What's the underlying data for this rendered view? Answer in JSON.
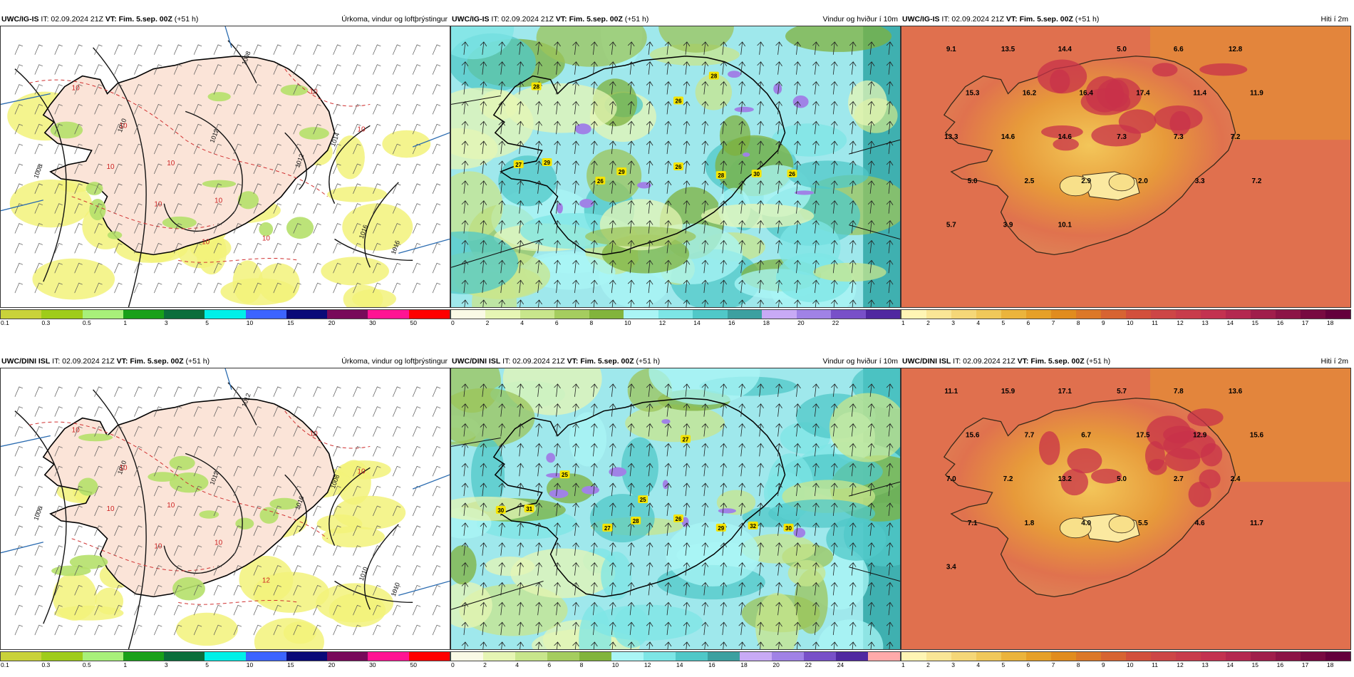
{
  "rows": [
    {
      "model": "UWC/IG-IS",
      "it": "IT: 02.09.2024 21Z",
      "vt": "VT: Fim. 5.sep. 00Z",
      "lead": "(+51 h)",
      "panels": [
        {
          "title": "Úrkoma, vindur og loftþrýstingur",
          "legend": [
            "0.1",
            "0.3",
            "0.5",
            "1",
            "3",
            "5",
            "10",
            "15",
            "20",
            "30",
            "50"
          ]
        },
        {
          "title": "Vindur og hviður í 10m",
          "legend": [
            "0",
            "2",
            "4",
            "6",
            "8",
            "10",
            "12",
            "14",
            "16",
            "18",
            "20",
            "22"
          ]
        },
        {
          "title": "Hiti í 2m",
          "legend": [
            "1",
            "2",
            "3",
            "4",
            "5",
            "6",
            "7",
            "8",
            "9",
            "10",
            "11",
            "12",
            "13",
            "14",
            "15",
            "16",
            "17",
            "18"
          ]
        }
      ],
      "temps": [
        "9.1",
        "13.5",
        "14.4",
        "5.0",
        "6.6",
        "12.8",
        "15.3",
        "16.2",
        "16.4",
        "17.4",
        "11.4",
        "11.9",
        "13.3",
        "14.6",
        "14.6",
        "7.3",
        "7.3",
        "7.2",
        "5.0",
        "2.5",
        "2.9",
        "2.0",
        "3.3",
        "7.2",
        "5.7",
        "3.9",
        "10.1"
      ],
      "gusts": [
        "28",
        "28",
        "26",
        "27",
        "29",
        "26",
        "29",
        "26",
        "28",
        "30",
        "26"
      ],
      "isobars": [
        "1008",
        "1010",
        "1012",
        "1014",
        "1016",
        "1008",
        "1012",
        "1016"
      ],
      "precip_labels": [
        "10",
        "10",
        "10",
        "10",
        "10",
        "10",
        "10",
        "10",
        "10",
        "10"
      ]
    },
    {
      "model": "UWC/DINI ISL",
      "it": "IT: 02.09.2024 21Z",
      "vt": "VT: Fim. 5.sep. 00Z",
      "lead": "(+51 h)",
      "panels": [
        {
          "title": "Úrkoma, vindur og loftþrýstingur",
          "legend": [
            "0.1",
            "0.3",
            "0.5",
            "1",
            "3",
            "5",
            "10",
            "15",
            "20",
            "30",
            "50"
          ]
        },
        {
          "title": "Vindur og hviður í 10m",
          "legend": [
            "0",
            "2",
            "4",
            "6",
            "8",
            "10",
            "12",
            "14",
            "16",
            "18",
            "20",
            "22",
            "24"
          ]
        },
        {
          "title": "Hiti í 2m",
          "legend": [
            "1",
            "2",
            "3",
            "4",
            "5",
            "6",
            "7",
            "8",
            "9",
            "10",
            "11",
            "12",
            "13",
            "14",
            "15",
            "16",
            "17",
            "18"
          ]
        }
      ],
      "temps": [
        "11.1",
        "15.9",
        "17.1",
        "5.7",
        "7.8",
        "13.6",
        "15.6",
        "7.7",
        "6.7",
        "17.5",
        "12.9",
        "15.6",
        "7.0",
        "7.2",
        "13.2",
        "5.0",
        "2.7",
        "2.4",
        "7.1",
        "1.8",
        "4.0",
        "5.5",
        "4.6",
        "11.7",
        "3.4"
      ],
      "gusts": [
        "27",
        "25",
        "25",
        "30",
        "31",
        "27",
        "28",
        "26",
        "29",
        "32",
        "30"
      ],
      "isobars": [
        "1006",
        "1010",
        "1012",
        "1008",
        "1010",
        "1012",
        "1016",
        "1010"
      ],
      "precip_labels": [
        "10",
        "10",
        "10",
        "10",
        "12",
        "10",
        "10",
        "10",
        "10"
      ]
    }
  ],
  "legend_colors": {
    "precip": [
      "#c9d23a",
      "#9fcc1a",
      "#a8f07a",
      "#19a019",
      "#0b6e3b",
      "#00f0e8",
      "#3c64ff",
      "#0a0a78",
      "#780a5a",
      "#ff1493",
      "#ff0000"
    ],
    "wind": [
      "#fafae6",
      "#e6f5b4",
      "#c8e68c",
      "#a5cd5f",
      "#82b43c",
      "#aaf5f5",
      "#7de6e6",
      "#50c8c8",
      "#3ca0a0",
      "#c8aaf5",
      "#a082e6",
      "#7850c8",
      "#5028a0",
      "#ffaaaa"
    ],
    "temp": [
      "#fff5b4",
      "#fae696",
      "#f5d778",
      "#f0c85a",
      "#ebb43c",
      "#e6a028",
      "#e18c1e",
      "#dc7828",
      "#d76432",
      "#d2503c",
      "#cd4646",
      "#c83c4b",
      "#c33250",
      "#b42850",
      "#a01e4b",
      "#8c1446",
      "#780a41",
      "#64003c"
    ]
  }
}
